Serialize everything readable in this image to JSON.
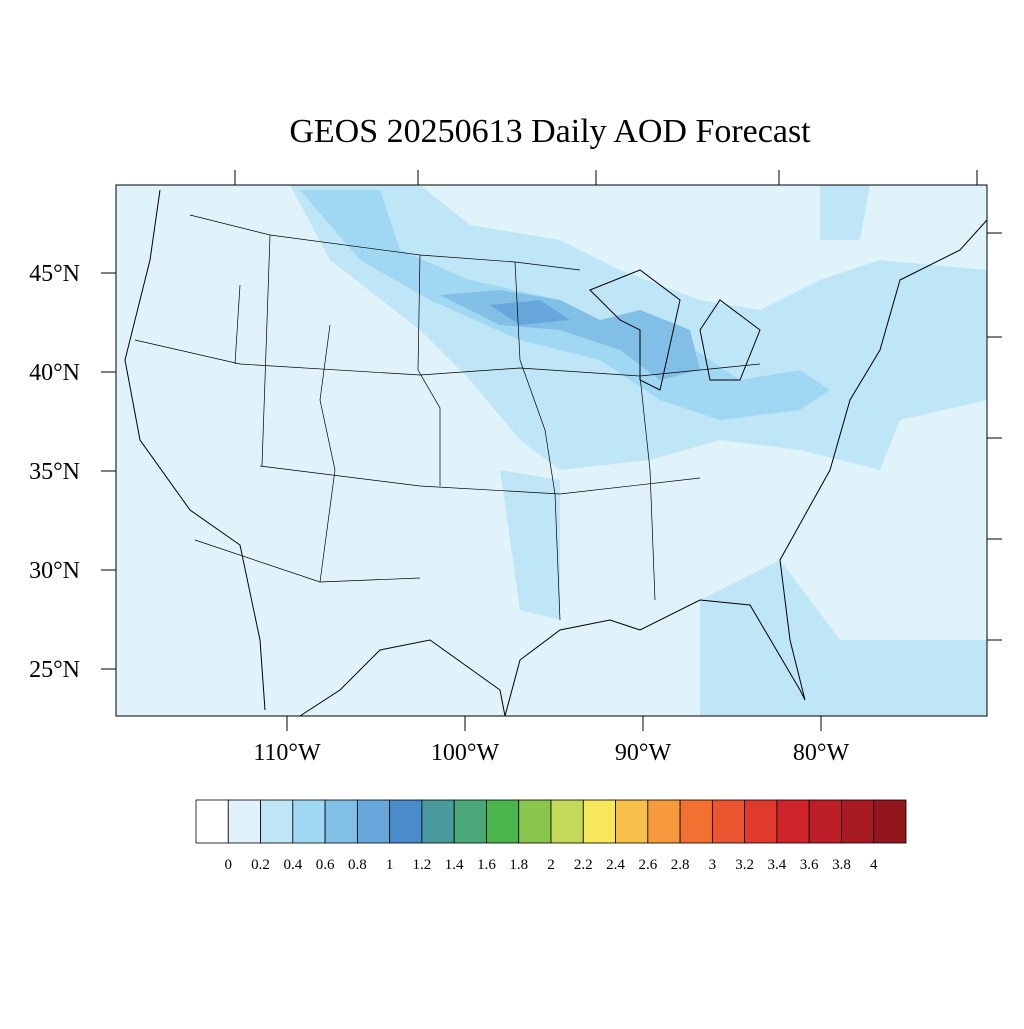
{
  "map": {
    "title": "GEOS 20250613 Daily AOD Forecast",
    "lat_ticks": [
      {
        "value": 45,
        "label": "45°N"
      },
      {
        "value": 40,
        "label": "40°N"
      },
      {
        "value": 35,
        "label": "35°N"
      },
      {
        "value": 30,
        "label": "30°N"
      },
      {
        "value": 25,
        "label": "25°N"
      }
    ],
    "lon_ticks": [
      {
        "value": -110,
        "label": "110°W"
      },
      {
        "value": -100,
        "label": "100°W"
      },
      {
        "value": -90,
        "label": "90°W"
      },
      {
        "value": -80,
        "label": "80°W"
      }
    ],
    "colorbar": {
      "levels": [
        0,
        0.2,
        0.4,
        0.6,
        0.8,
        1,
        1.2,
        1.4,
        1.6,
        1.8,
        2,
        2.2,
        2.4,
        2.6,
        2.8,
        3,
        3.2,
        3.4,
        3.6,
        3.8,
        4
      ],
      "colors": [
        "#ffffff",
        "#e0f3fb",
        "#bfe6f7",
        "#a0d8f3",
        "#82bfe6",
        "#67a7dc",
        "#4a8ccb",
        "#4a9a9e",
        "#4aa878",
        "#4ab54a",
        "#88c64e",
        "#c4d85a",
        "#f7e75a",
        "#f7c04a",
        "#f79a3e",
        "#f27030",
        "#eb5530",
        "#e03a2e",
        "#d0242b",
        "#bd1f28",
        "#a81a22",
        "#92161c"
      ]
    }
  }
}
